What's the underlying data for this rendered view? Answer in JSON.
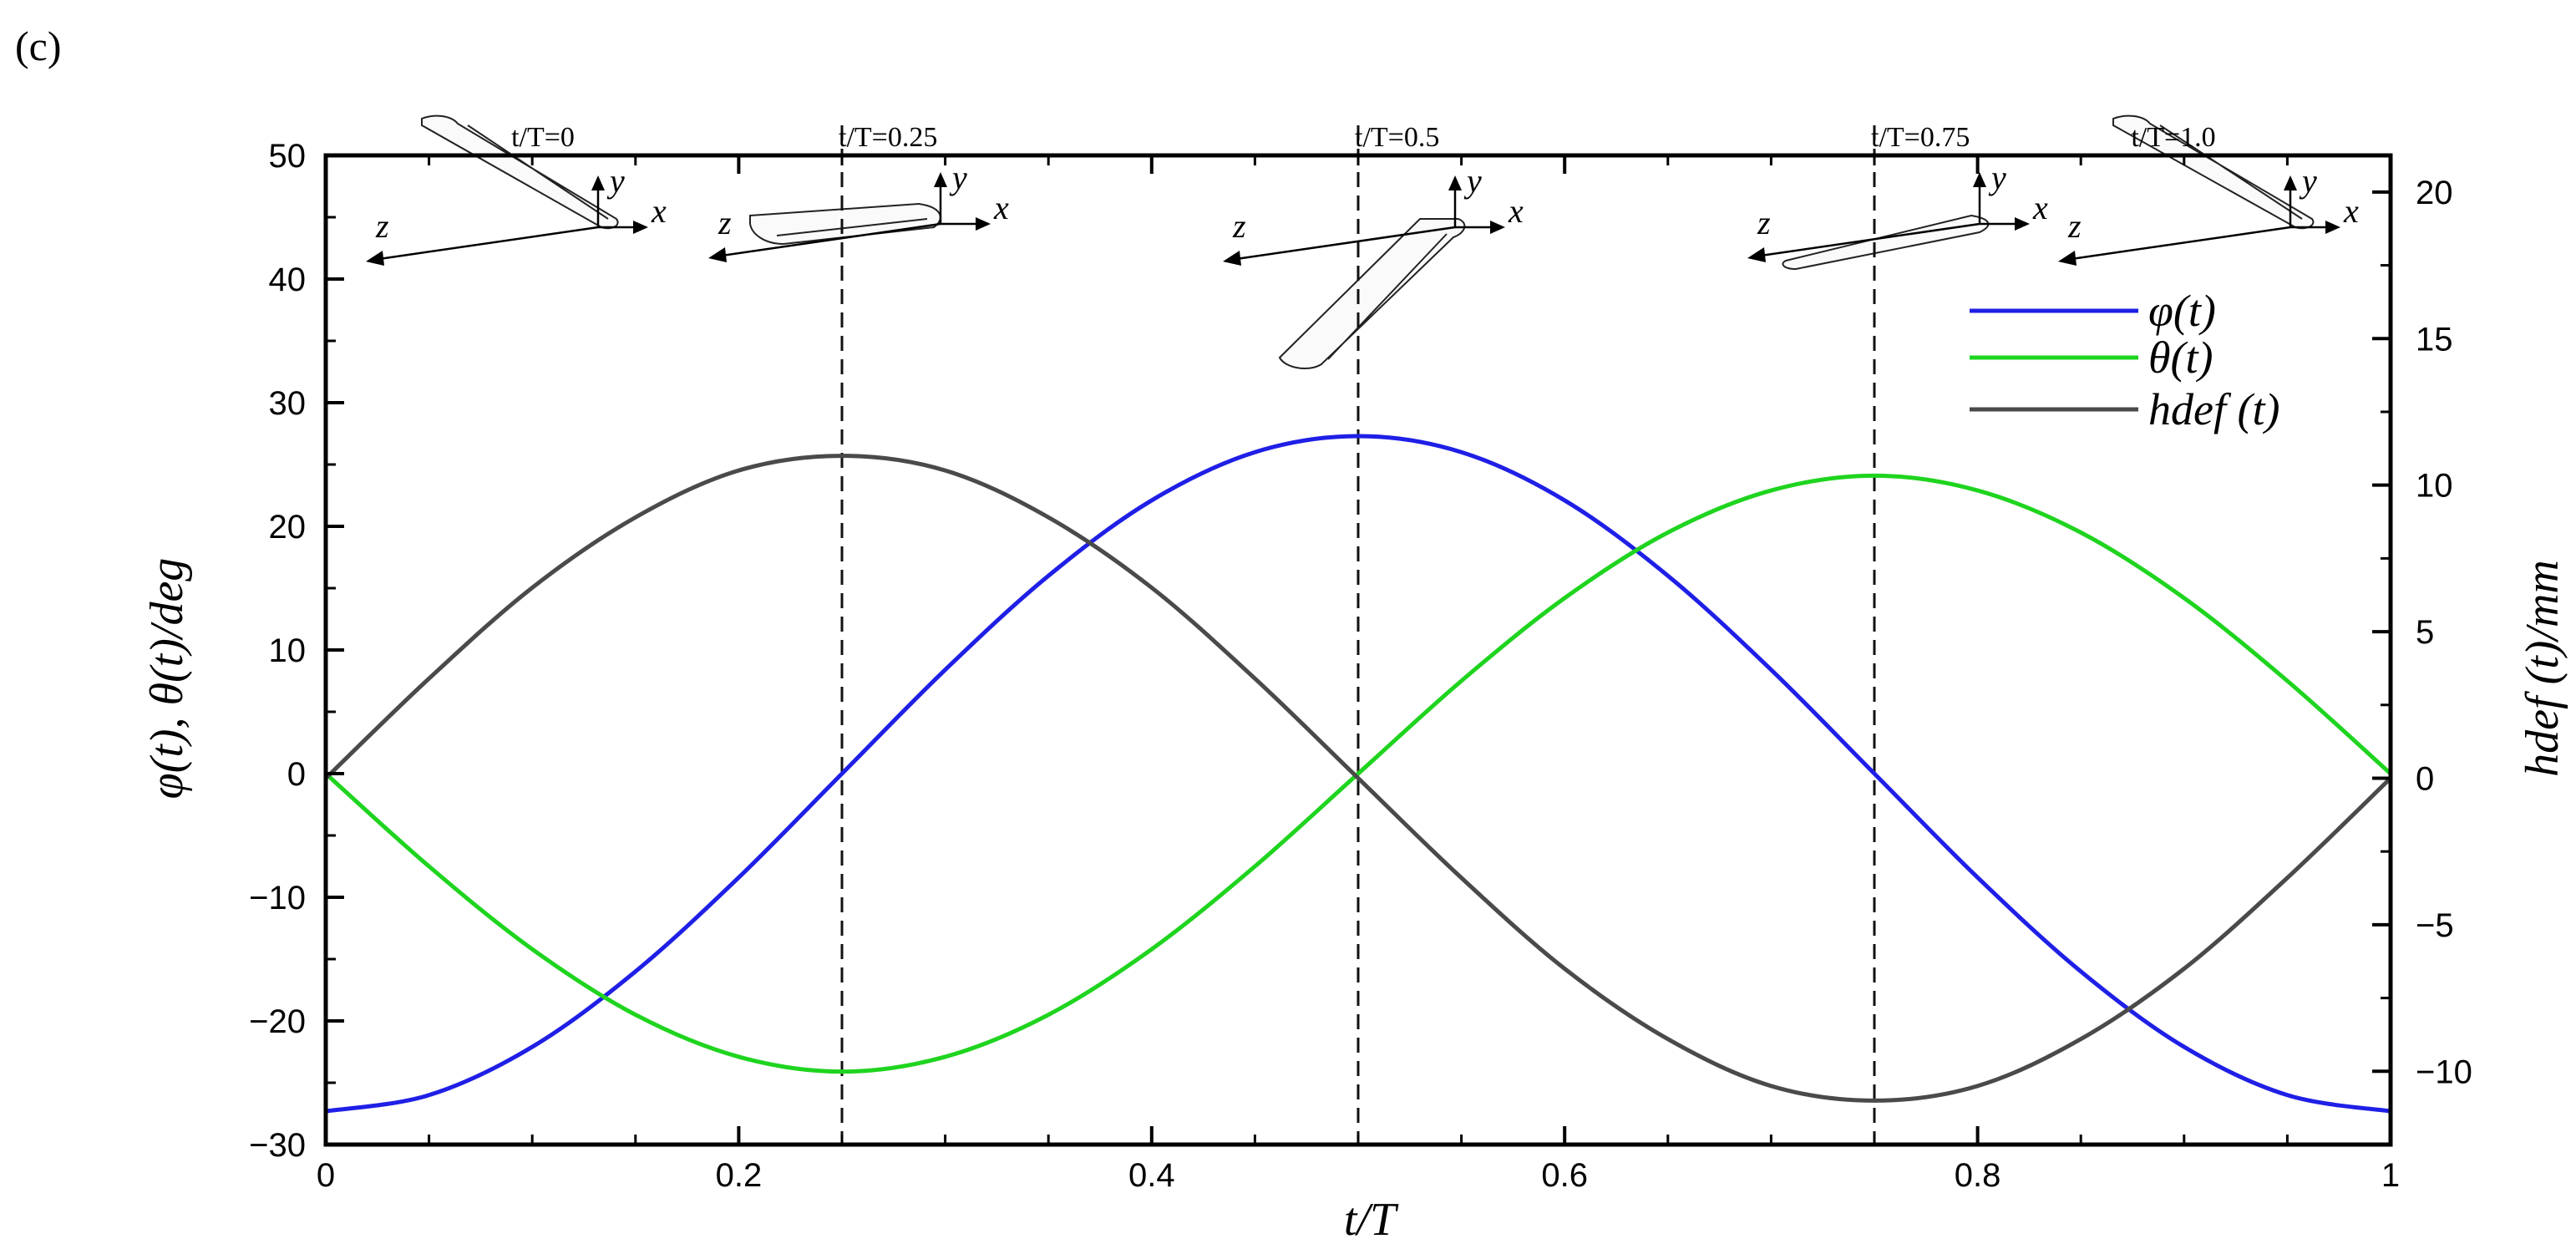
{
  "panel_label": "(c)",
  "chart_data": {
    "type": "line",
    "xlabel": "t/T",
    "ylabel": "φ(t), θ(t)/deg",
    "ylabel_right": "hdef (t)/mm",
    "xlim": [
      0,
      1
    ],
    "ylim": [
      -30,
      50
    ],
    "ylim_right": [
      -12.5,
      21.25
    ],
    "x_ticks": [
      0,
      0.2,
      0.4,
      0.6,
      0.8,
      1
    ],
    "x_tick_labels": [
      "0",
      "0.2",
      "0.4",
      "0.6",
      "0.8",
      "1"
    ],
    "y_ticks": [
      -30,
      -20,
      -10,
      0,
      10,
      20,
      30,
      40,
      50
    ],
    "y_tick_labels": [
      "−30",
      "−20",
      "−10",
      "0",
      "10",
      "20",
      "30",
      "40",
      "50"
    ],
    "y_right_ticks": [
      -10,
      -5,
      0,
      5,
      10,
      15,
      20
    ],
    "y_right_tick_labels": [
      "−10",
      "−5",
      "0",
      "5",
      "10",
      "15",
      "20"
    ],
    "grid": false,
    "legend_position": "top-right",
    "series": [
      {
        "name": "φ(t)",
        "axis": "left",
        "color": "#1f1fe6",
        "x": [
          0,
          0.05,
          0.1,
          0.15,
          0.2,
          0.25,
          0.3,
          0.35,
          0.4,
          0.45,
          0.5,
          0.55,
          0.6,
          0.65,
          0.7,
          0.75,
          0.8,
          0.85,
          0.9,
          0.95,
          1
        ],
        "y": [
          -27.3,
          -26.0,
          -22.1,
          -16.0,
          -8.4,
          0.0,
          8.4,
          16.0,
          22.1,
          26.0,
          27.3,
          26.0,
          22.1,
          16.0,
          8.4,
          0.0,
          -8.4,
          -16.0,
          -22.1,
          -26.0,
          -27.3
        ]
      },
      {
        "name": "θ(t)",
        "axis": "left",
        "color": "#1fd41f",
        "x": [
          0,
          0.05,
          0.1,
          0.15,
          0.2,
          0.25,
          0.3,
          0.35,
          0.4,
          0.45,
          0.5,
          0.55,
          0.6,
          0.65,
          0.7,
          0.75,
          0.8,
          0.85,
          0.9,
          0.95,
          1
        ],
        "y": [
          0.0,
          -7.5,
          -14.2,
          -19.5,
          -22.9,
          -24.1,
          -22.9,
          -19.5,
          -14.2,
          -7.5,
          0.0,
          7.5,
          14.2,
          19.5,
          22.9,
          24.1,
          22.9,
          19.5,
          14.2,
          7.5,
          0.0
        ]
      },
      {
        "name": "hdef (t)",
        "axis": "right",
        "color": "#4a4a4a",
        "x": [
          0,
          0.05,
          0.1,
          0.15,
          0.2,
          0.25,
          0.3,
          0.35,
          0.4,
          0.45,
          0.5,
          0.55,
          0.6,
          0.65,
          0.7,
          0.75,
          0.8,
          0.85,
          0.9,
          0.95,
          1
        ],
        "y": [
          0.0,
          3.4,
          6.5,
          8.9,
          10.5,
          11.0,
          10.5,
          8.9,
          6.5,
          3.4,
          0.0,
          -3.4,
          -6.5,
          -8.9,
          -10.5,
          -11.0,
          -10.5,
          -8.9,
          -6.5,
          -3.4,
          0.0
        ]
      }
    ],
    "reference_lines": [
      {
        "x": 0.25,
        "label": "t/T=0.25"
      },
      {
        "x": 0.5,
        "label": "t/T=0.5"
      },
      {
        "x": 0.75,
        "label": "t/T=0.75"
      }
    ],
    "annotations": [
      {
        "x": 0,
        "label": "t/T=0"
      },
      {
        "x": 1,
        "label": "t/T=1.0"
      }
    ],
    "axis_glyphs": {
      "x": "x",
      "y": "y",
      "z": "z"
    }
  }
}
